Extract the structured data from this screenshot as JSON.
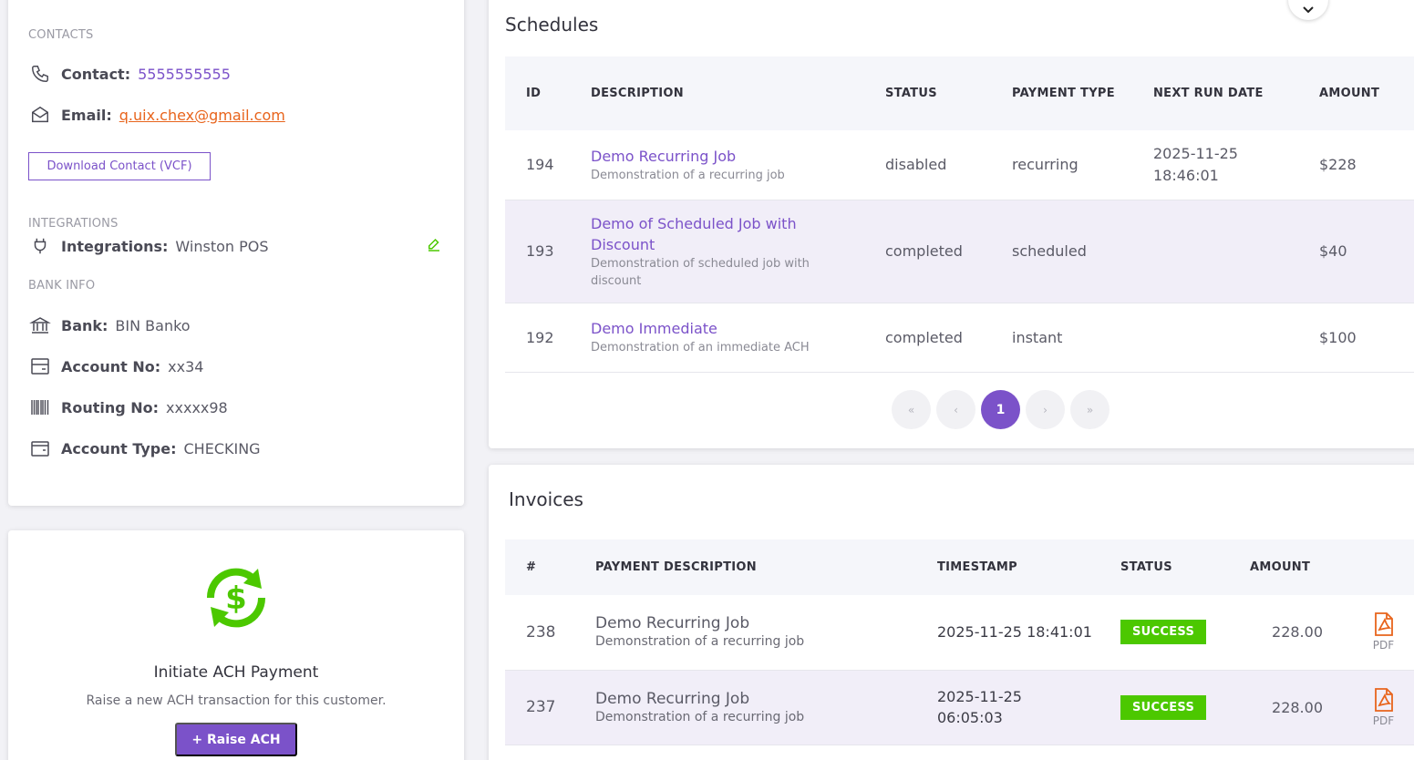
{
  "contact": {
    "section_contacts": "CONTACTS",
    "contact_label": "Contact:",
    "contact_value": "5555555555",
    "email_label": "Email:",
    "email_value": "q.uix.chex@gmail.com",
    "download_vcf": "Download Contact (VCF)",
    "section_integrations": "INTEGRATIONS",
    "integrations_label": "Integrations:",
    "integrations_value": "Winston POS",
    "section_bank": "BANK INFO",
    "bank_label": "Bank:",
    "bank_value": "BIN Banko",
    "account_no_label": "Account No:",
    "account_no_value": "xx34",
    "routing_label": "Routing No:",
    "routing_value": "xxxxx98",
    "account_type_label": "Account Type:",
    "account_type_value": "CHECKING"
  },
  "ach": {
    "title": "Initiate ACH Payment",
    "subtitle": "Raise a new ACH transaction for this customer.",
    "button": "+ Raise ACH"
  },
  "schedules": {
    "title": "Schedules",
    "headers": [
      "ID",
      "DESCRIPTION",
      "STATUS",
      "PAYMENT TYPE",
      "NEXT RUN DATE",
      "AMOUNT"
    ],
    "rows": [
      {
        "id": "194",
        "title": "Demo Recurring Job",
        "sub": "Demonstration of a recurring job",
        "status": "disabled",
        "type": "recurring",
        "next_run": "2025-11-25 18:46:01",
        "amount": "$228"
      },
      {
        "id": "193",
        "title": "Demo of Scheduled Job with Discount",
        "sub": "Demonstration of scheduled job with discount",
        "status": "completed",
        "type": "scheduled",
        "next_run": "",
        "amount": "$40"
      },
      {
        "id": "192",
        "title": "Demo Immediate",
        "sub": "Demonstration of an immediate ACH",
        "status": "completed",
        "type": "instant",
        "next_run": "",
        "amount": "$100"
      }
    ],
    "pager": {
      "first": "«",
      "prev": "‹",
      "current": "1",
      "next": "›",
      "last": "»"
    }
  },
  "invoices": {
    "title": "Invoices",
    "headers": [
      "#",
      "PAYMENT DESCRIPTION",
      "TIMESTAMP",
      "STATUS",
      "AMOUNT",
      ""
    ],
    "rows": [
      {
        "num": "238",
        "title": "Demo Recurring Job",
        "sub": "Demonstration of a recurring job",
        "timestamp": "2025-11-25 18:41:01",
        "status": "SUCCESS",
        "amount": "228.00",
        "pdf": "PDF"
      },
      {
        "num": "237",
        "title": "Demo Recurring Job",
        "sub": "Demonstration of a recurring job",
        "timestamp": "2025-11-25 06:05:03",
        "status": "SUCCESS",
        "amount": "228.00",
        "pdf": "PDF"
      }
    ]
  },
  "colors": {
    "accent": "#7b52c9",
    "success": "#4cc800",
    "email": "#e8641c"
  }
}
